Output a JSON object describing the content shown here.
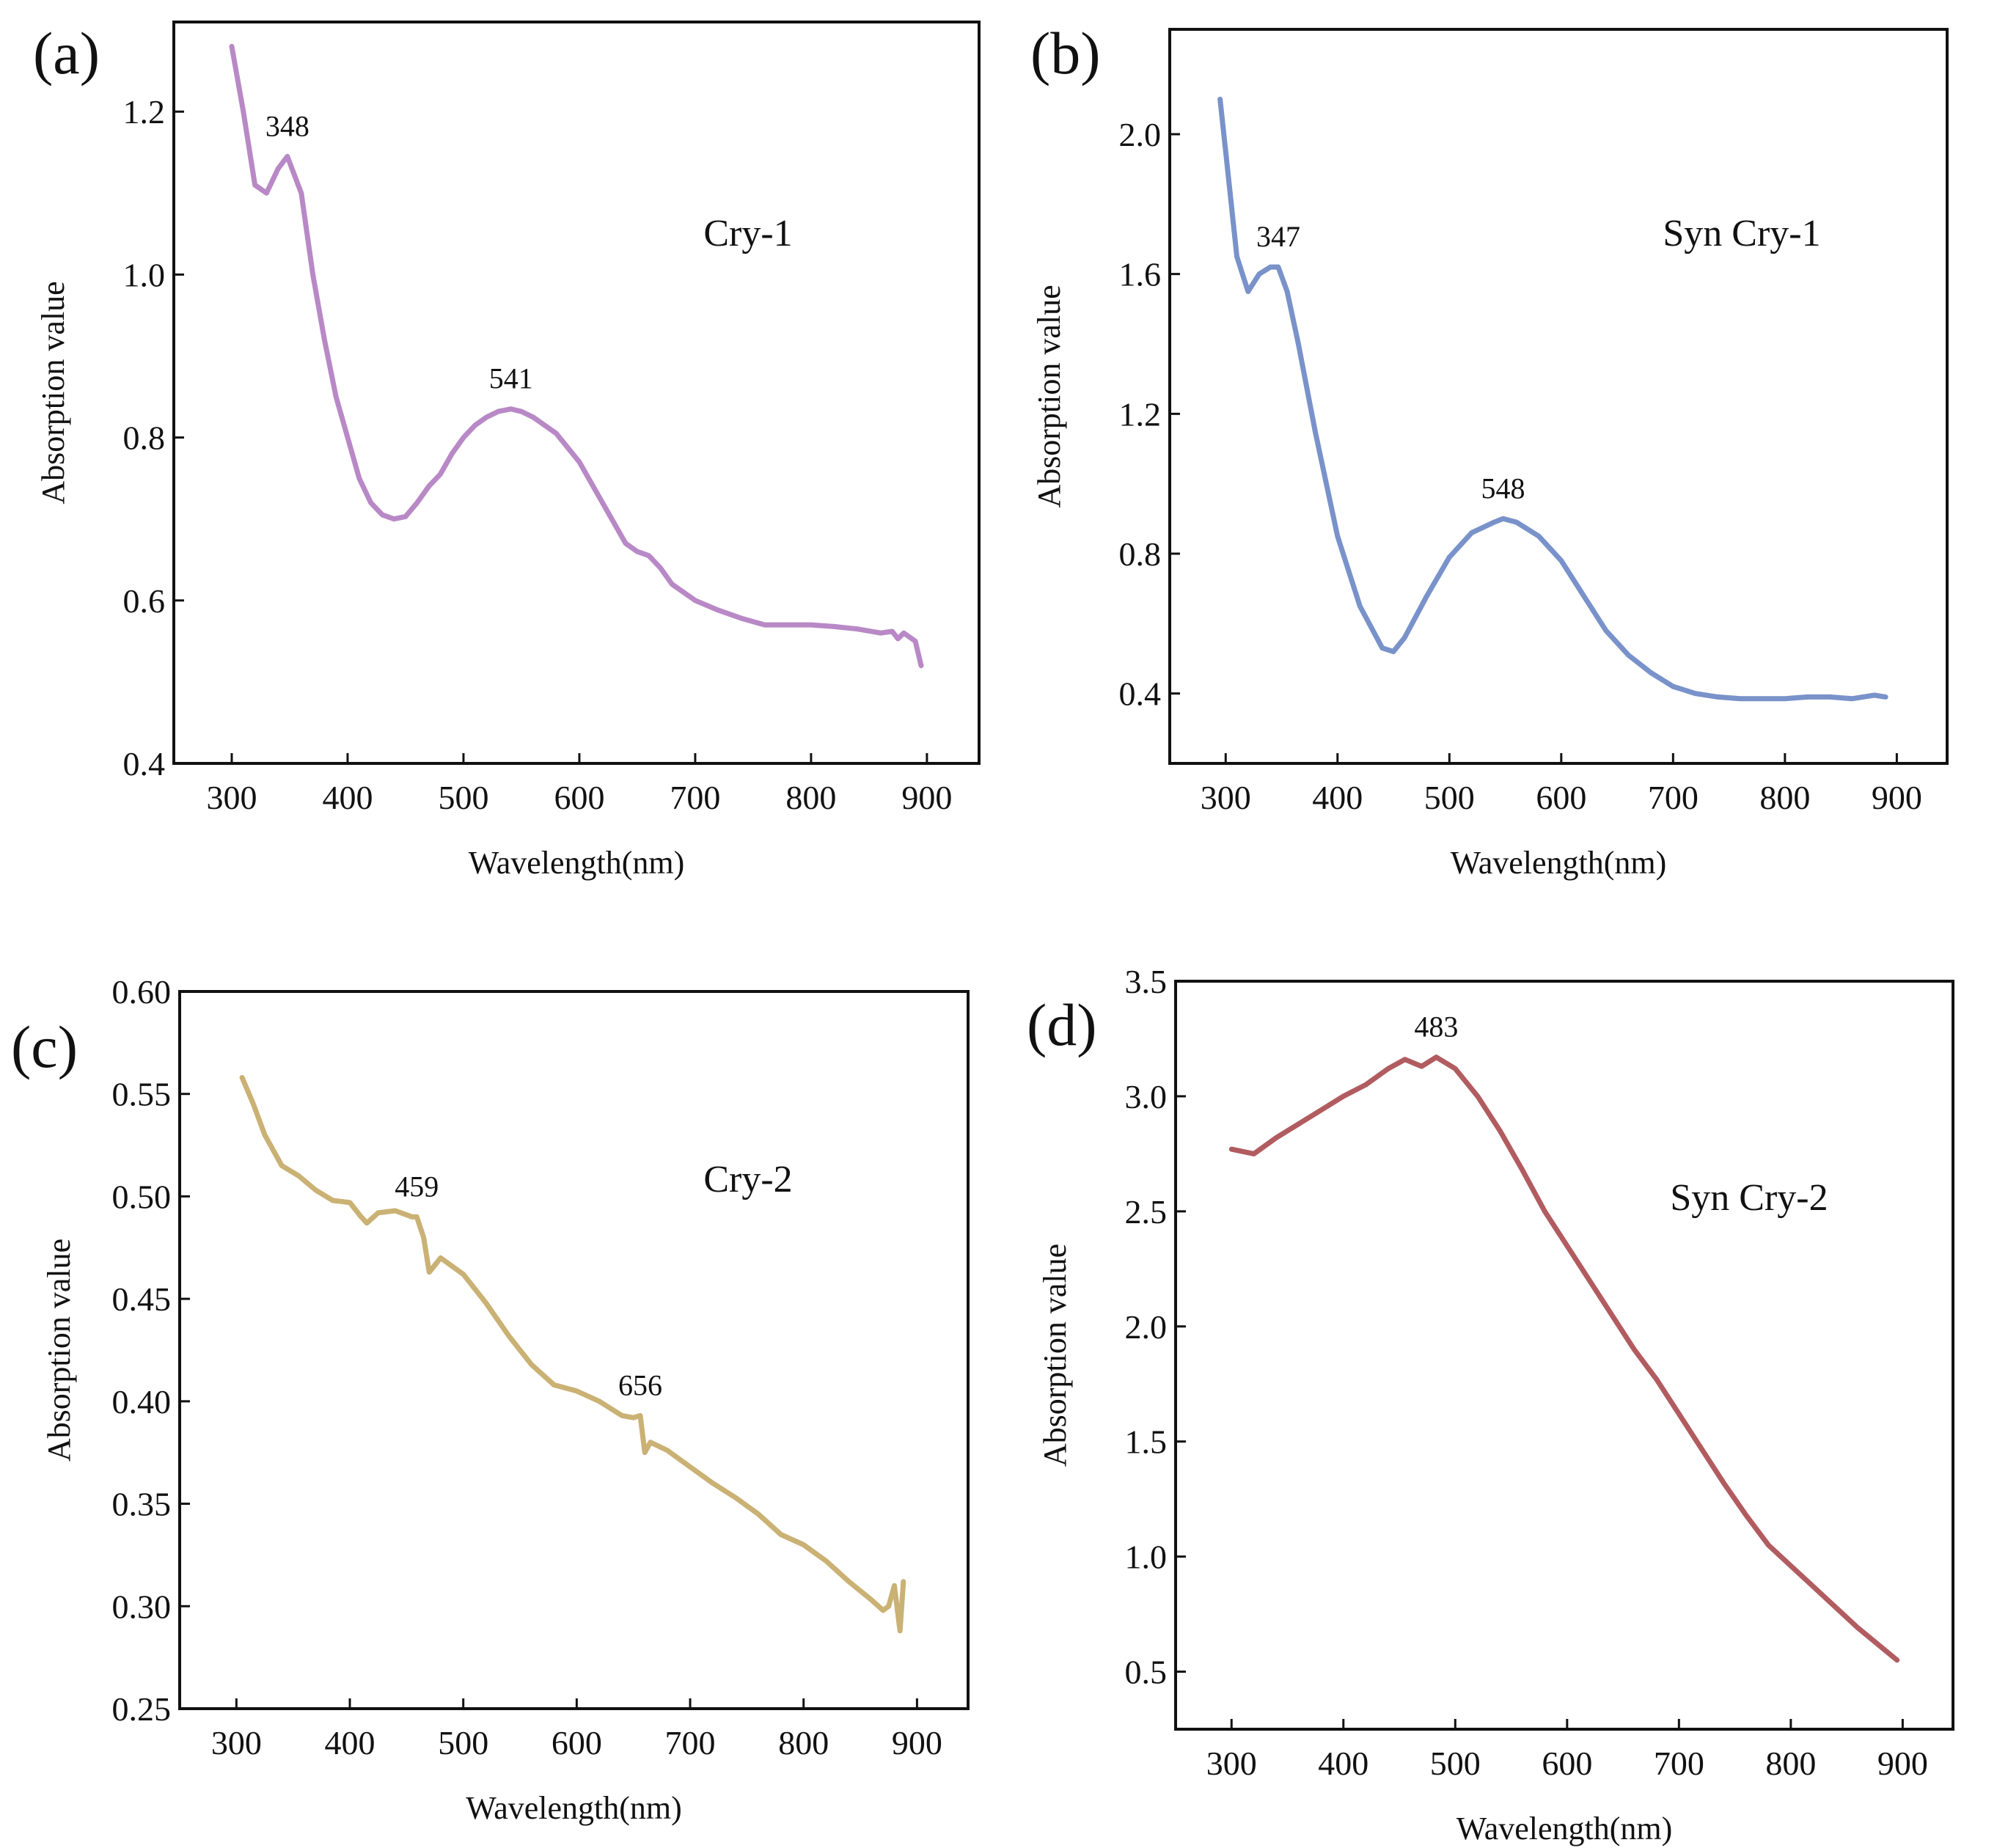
{
  "figure": {
    "panels_count": 4
  },
  "chart_data": [
    {
      "panel_id": "a",
      "panel_label": "(a)",
      "sample_label": "Cry-1",
      "type": "line",
      "xlabel": "Wavelength(nm)",
      "ylabel": "Absorption value",
      "xlim": [
        250,
        945
      ],
      "ylim": [
        0.4,
        1.31
      ],
      "xticks": [
        300,
        400,
        500,
        600,
        700,
        800,
        900
      ],
      "yticks": [
        0.4,
        0.6,
        0.8,
        1.0,
        1.2
      ],
      "ytick_labels": [
        "0.4",
        "0.6",
        "0.8",
        "1.0",
        "1.2"
      ],
      "color": "#b07cc0",
      "series": [
        {
          "name": "Cry-1",
          "x": [
            300,
            310,
            320,
            330,
            340,
            348,
            360,
            370,
            380,
            390,
            400,
            410,
            420,
            430,
            440,
            450,
            460,
            470,
            480,
            490,
            500,
            510,
            520,
            530,
            541,
            550,
            560,
            580,
            600,
            620,
            640,
            650,
            660,
            670,
            680,
            700,
            720,
            740,
            760,
            780,
            800,
            820,
            840,
            860,
            870,
            875,
            880,
            890,
            895
          ],
          "y": [
            1.28,
            1.2,
            1.11,
            1.1,
            1.13,
            1.145,
            1.1,
            1.0,
            0.92,
            0.85,
            0.8,
            0.75,
            0.72,
            0.705,
            0.7,
            0.703,
            0.72,
            0.74,
            0.755,
            0.78,
            0.8,
            0.815,
            0.825,
            0.832,
            0.835,
            0.832,
            0.825,
            0.805,
            0.77,
            0.72,
            0.67,
            0.66,
            0.655,
            0.64,
            0.62,
            0.6,
            0.588,
            0.578,
            0.57,
            0.57,
            0.57,
            0.568,
            0.565,
            0.56,
            0.562,
            0.553,
            0.56,
            0.55,
            0.52
          ]
        }
      ],
      "peaks": [
        {
          "x": 348,
          "y": 1.145,
          "label": "348"
        },
        {
          "x": 541,
          "y": 0.835,
          "label": "541"
        }
      ]
    },
    {
      "panel_id": "b",
      "panel_label": "(b)",
      "sample_label": "Syn Cry-1",
      "type": "line",
      "xlabel": "Wavelength(nm)",
      "ylabel": "Absorption value",
      "xlim": [
        250,
        945
      ],
      "ylim": [
        0.2,
        2.3
      ],
      "xticks": [
        300,
        400,
        500,
        600,
        700,
        800,
        900
      ],
      "yticks": [
        0.4,
        0.8,
        1.2,
        1.6,
        2.0
      ],
      "ytick_labels": [
        "0.4",
        "0.8",
        "1.2",
        "1.6",
        "2.0"
      ],
      "color": "#6a86c4",
      "series": [
        {
          "name": "Syn Cry-1",
          "x": [
            295,
            300,
            310,
            320,
            330,
            340,
            347,
            355,
            365,
            380,
            400,
            420,
            440,
            450,
            460,
            480,
            500,
            520,
            540,
            548,
            560,
            580,
            600,
            620,
            640,
            660,
            680,
            700,
            720,
            740,
            760,
            780,
            800,
            820,
            840,
            860,
            880,
            890
          ],
          "y": [
            2.1,
            1.95,
            1.65,
            1.55,
            1.6,
            1.62,
            1.62,
            1.55,
            1.4,
            1.15,
            0.85,
            0.65,
            0.53,
            0.52,
            0.56,
            0.68,
            0.79,
            0.86,
            0.89,
            0.9,
            0.89,
            0.85,
            0.78,
            0.68,
            0.58,
            0.51,
            0.46,
            0.42,
            0.4,
            0.39,
            0.385,
            0.385,
            0.385,
            0.39,
            0.39,
            0.385,
            0.395,
            0.39
          ]
        }
      ],
      "peaks": [
        {
          "x": 347,
          "y": 1.62,
          "label": "347"
        },
        {
          "x": 548,
          "y": 0.9,
          "label": "548"
        }
      ]
    },
    {
      "panel_id": "c",
      "panel_label": "(c)",
      "sample_label": "Cry-2",
      "type": "line",
      "xlabel": "Wavelength(nm)",
      "ylabel": "Absorption value",
      "xlim": [
        250,
        945
      ],
      "ylim": [
        0.25,
        0.6
      ],
      "xticks": [
        300,
        400,
        500,
        600,
        700,
        800,
        900
      ],
      "yticks": [
        0.25,
        0.3,
        0.35,
        0.4,
        0.45,
        0.5,
        0.55,
        0.6
      ],
      "ytick_labels": [
        "0.25",
        "0.30",
        "0.35",
        "0.40",
        "0.45",
        "0.50",
        "0.55",
        "0.60"
      ],
      "color": "#c4a865",
      "series": [
        {
          "name": "Cry-2",
          "x": [
            305,
            315,
            325,
            340,
            355,
            370,
            385,
            400,
            410,
            415,
            425,
            440,
            455,
            459,
            465,
            470,
            480,
            500,
            520,
            540,
            560,
            580,
            600,
            620,
            640,
            650,
            656,
            660,
            665,
            680,
            700,
            720,
            740,
            760,
            780,
            800,
            820,
            840,
            860,
            870,
            875,
            880,
            885,
            888
          ],
          "y": [
            0.558,
            0.545,
            0.53,
            0.515,
            0.51,
            0.503,
            0.498,
            0.497,
            0.49,
            0.487,
            0.492,
            0.493,
            0.49,
            0.49,
            0.48,
            0.463,
            0.47,
            0.462,
            0.448,
            0.432,
            0.418,
            0.408,
            0.405,
            0.4,
            0.393,
            0.392,
            0.393,
            0.375,
            0.38,
            0.376,
            0.368,
            0.36,
            0.353,
            0.345,
            0.335,
            0.33,
            0.322,
            0.312,
            0.303,
            0.298,
            0.3,
            0.31,
            0.288,
            0.312
          ]
        }
      ],
      "peaks": [
        {
          "x": 459,
          "y": 0.49,
          "label": "459"
        },
        {
          "x": 656,
          "y": 0.393,
          "label": "656"
        }
      ]
    },
    {
      "panel_id": "d",
      "panel_label": "(d)",
      "sample_label": "Syn Cry-2",
      "type": "line",
      "xlabel": "Wavelength(nm)",
      "ylabel": "Absorption value",
      "xlim": [
        250,
        945
      ],
      "ylim": [
        0.25,
        3.5
      ],
      "xticks": [
        300,
        400,
        500,
        600,
        700,
        800,
        900
      ],
      "yticks": [
        0.5,
        1.0,
        1.5,
        2.0,
        2.5,
        3.0,
        3.5
      ],
      "ytick_labels": [
        "0.5",
        "1.0",
        "1.5",
        "2.0",
        "2.5",
        "3.0",
        "3.5"
      ],
      "color": "#a84a4f",
      "series": [
        {
          "name": "Syn Cry-2",
          "x": [
            300,
            320,
            340,
            360,
            380,
            400,
            420,
            440,
            455,
            465,
            470,
            483,
            500,
            520,
            540,
            560,
            580,
            600,
            620,
            640,
            660,
            680,
            700,
            720,
            740,
            760,
            780,
            800,
            820,
            840,
            860,
            880,
            895
          ],
          "y": [
            2.77,
            2.75,
            2.82,
            2.88,
            2.94,
            3.0,
            3.05,
            3.12,
            3.16,
            3.14,
            3.13,
            3.17,
            3.12,
            3.0,
            2.85,
            2.68,
            2.5,
            2.35,
            2.2,
            2.05,
            1.9,
            1.77,
            1.62,
            1.47,
            1.32,
            1.18,
            1.05,
            0.96,
            0.87,
            0.78,
            0.69,
            0.61,
            0.55
          ]
        }
      ],
      "peaks": [
        {
          "x": 483,
          "y": 3.17,
          "label": "483"
        }
      ]
    }
  ]
}
